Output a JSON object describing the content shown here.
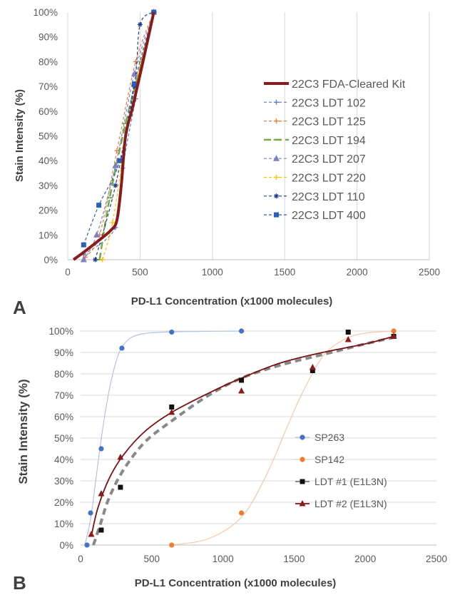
{
  "chart_data": [
    {
      "type": "line",
      "panel_label": "A",
      "xlabel": "PD-L1 Concentration (x1000 molecules)",
      "ylabel": "Stain Intensity (%)",
      "xlim": [
        0,
        2500
      ],
      "ylim": [
        0,
        100
      ],
      "x_ticks": [
        "0",
        "500",
        "1000",
        "1500",
        "2000",
        "2500"
      ],
      "y_ticks": [
        "0%",
        "10%",
        "20%",
        "30%",
        "40%",
        "50%",
        "60%",
        "70%",
        "80%",
        "90%",
        "100%"
      ],
      "vertical_grid": true,
      "horizontal_grid": false,
      "legend_position": "right",
      "series": [
        {
          "name": "22C3 FDA-Cleared Kit",
          "color": "#8b1a1a",
          "dash": "solid",
          "marker": "none",
          "width": 4,
          "points": [
            [
              40,
              0
            ],
            [
              110,
              3
            ],
            [
              220,
              8
            ],
            [
              300,
              12
            ],
            [
              340,
              16
            ],
            [
              370,
              30
            ],
            [
              400,
              50
            ],
            [
              450,
              62
            ],
            [
              520,
              80
            ],
            [
              595,
              100
            ]
          ]
        },
        {
          "name": "22C3 LDT 102",
          "color": "#5b7fc4",
          "dash": "dash",
          "marker": "plus",
          "points": [
            [
              110,
              2
            ],
            [
              330,
              13
            ],
            [
              380,
              37
            ],
            [
              470,
              65
            ],
            [
              595,
              100
            ]
          ]
        },
        {
          "name": "22C3 LDT 125",
          "color": "#ed7d31",
          "dash": "dash",
          "marker": "plus",
          "points": [
            [
              120,
              1
            ],
            [
              220,
              10
            ],
            [
              340,
              44
            ],
            [
              470,
              80
            ],
            [
              595,
              100
            ]
          ]
        },
        {
          "name": "22C3 LDT 194",
          "color": "#70ad47",
          "dash": "dashlong",
          "marker": "dash",
          "width": 2.5,
          "points": [
            [
              220,
              0
            ],
            [
              290,
              25
            ],
            [
              400,
              55
            ],
            [
              510,
              80
            ],
            [
              595,
              100
            ]
          ]
        },
        {
          "name": "22C3 LDT 207",
          "color": "#7f7fc6",
          "dash": "dash",
          "marker": "triangle",
          "points": [
            [
              110,
              0
            ],
            [
              200,
              10
            ],
            [
              330,
              38
            ],
            [
              460,
              75
            ],
            [
              595,
              100
            ]
          ]
        },
        {
          "name": "22C3 LDT 220",
          "color": "#ffc000",
          "dash": "dash",
          "marker": "plus",
          "points": [
            [
              240,
              0
            ],
            [
              310,
              15
            ],
            [
              390,
              45
            ],
            [
              490,
              75
            ],
            [
              595,
              100
            ]
          ]
        },
        {
          "name": "22C3 LDT 110",
          "color": "#1f3d8a",
          "dash": "dash",
          "marker": "star",
          "points": [
            [
              190,
              0
            ],
            [
              330,
              30
            ],
            [
              460,
              70
            ],
            [
              500,
              95
            ],
            [
              595,
              100
            ]
          ]
        },
        {
          "name": "22C3 LDT 400",
          "color": "#2e5fb8",
          "dash": "dash",
          "marker": "square",
          "points": [
            [
              110,
              6
            ],
            [
              215,
              22
            ],
            [
              360,
              40
            ],
            [
              460,
              71
            ],
            [
              595,
              100
            ]
          ]
        }
      ]
    },
    {
      "type": "scatter",
      "panel_label": "B",
      "xlabel": "PD-L1 Concentration (x1000 molecules)",
      "ylabel": "Stain Intensity (%)",
      "xlim": [
        0,
        2500
      ],
      "ylim": [
        0,
        100
      ],
      "x_ticks": [
        "0",
        "500",
        "1000",
        "1500",
        "2000",
        "2500"
      ],
      "y_ticks": [
        "0%",
        "10%",
        "20%",
        "30%",
        "40%",
        "50%",
        "60%",
        "70%",
        "80%",
        "90%",
        "100%"
      ],
      "vertical_grid": false,
      "horizontal_grid": true,
      "legend_position": "right",
      "series": [
        {
          "name": "SP263",
          "color": "#4472c4",
          "marker": "circle",
          "points": [
            [
              45,
              0
            ],
            [
              70,
              15
            ],
            [
              145,
              45
            ],
            [
              290,
              92
            ],
            [
              640,
              99.5
            ],
            [
              1130,
              100
            ]
          ],
          "fit": {
            "color": "#b4c0e4",
            "width": 1.2,
            "points": [
              [
                30,
                0
              ],
              [
                70,
                12
              ],
              [
                110,
                32
              ],
              [
                150,
                52
              ],
              [
                200,
                72
              ],
              [
                260,
                88
              ],
              [
                320,
                95
              ],
              [
                420,
                98.5
              ],
              [
                640,
                99.6
              ],
              [
                1130,
                100
              ]
            ]
          }
        },
        {
          "name": "SP142",
          "color": "#ed7d31",
          "marker": "circle",
          "points": [
            [
              640,
              0
            ],
            [
              1130,
              15
            ],
            [
              1630,
              82
            ],
            [
              2200,
              100
            ]
          ],
          "fit": {
            "color": "#f6c6a4",
            "width": 1.2,
            "points": [
              [
                640,
                0
              ],
              [
                900,
                3
              ],
              [
                1130,
                13
              ],
              [
                1300,
                32
              ],
              [
                1450,
                55
              ],
              [
                1550,
                70
              ],
              [
                1700,
                88
              ],
              [
                1850,
                96
              ],
              [
                2000,
                99
              ],
              [
                2200,
                100
              ]
            ]
          }
        },
        {
          "name": "LDT #1 (E1L3N)",
          "color": "#111111",
          "marker": "square",
          "points": [
            [
              145,
              7
            ],
            [
              280,
              27
            ],
            [
              640,
              64.5
            ],
            [
              1130,
              77
            ],
            [
              1630,
              81.5
            ],
            [
              1880,
              99.5
            ],
            [
              2200,
              97.5
            ]
          ],
          "fit": {
            "color": "#888888",
            "width": 4,
            "dash": "9,6",
            "points": [
              [
                90,
                0
              ],
              [
                140,
                10
              ],
              [
                200,
                22
              ],
              [
                300,
                35
              ],
              [
                450,
                48
              ],
              [
                640,
                58
              ],
              [
                900,
                70
              ],
              [
                1130,
                78
              ],
              [
                1400,
                84
              ],
              [
                1700,
                89
              ],
              [
                2000,
                94
              ],
              [
                2200,
                97
              ]
            ]
          }
        },
        {
          "name": "LDT #2 (E1L3N)",
          "color": "#8b1a1a",
          "marker": "triangle",
          "points": [
            [
              75,
              5
            ],
            [
              145,
              24
            ],
            [
              280,
              41
            ],
            [
              640,
              62
            ],
            [
              1130,
              72
            ],
            [
              1630,
              83
            ],
            [
              1880,
              96
            ],
            [
              2200,
              97.5
            ]
          ],
          "fit": {
            "color": "#7a1010",
            "width": 1.8,
            "points": [
              [
                75,
                4
              ],
              [
                120,
                17
              ],
              [
                200,
                31
              ],
              [
                300,
                42
              ],
              [
                450,
                53
              ],
              [
                640,
                62
              ],
              [
                900,
                71
              ],
              [
                1130,
                78
              ],
              [
                1400,
                85
              ],
              [
                1700,
                90
              ],
              [
                2000,
                94
              ],
              [
                2200,
                97.5
              ]
            ]
          }
        }
      ]
    }
  ]
}
